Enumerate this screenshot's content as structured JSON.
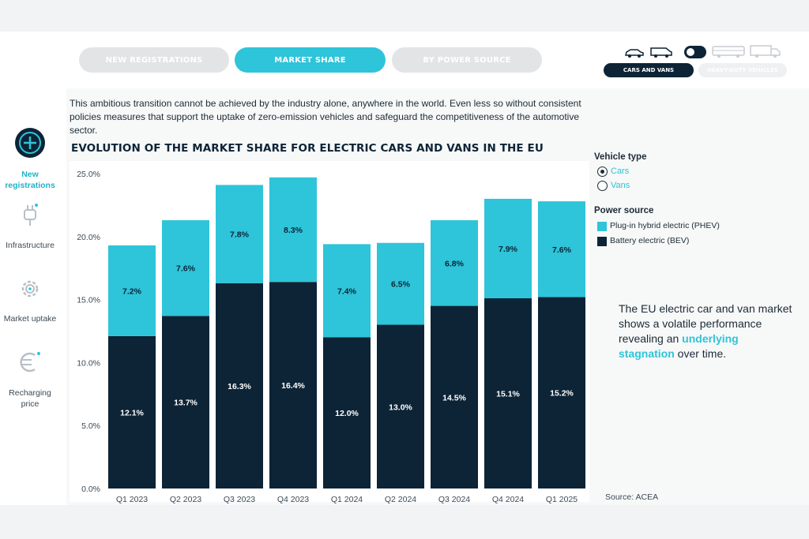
{
  "tabs": [
    {
      "label": "NEW REGISTRATIONS",
      "active": false
    },
    {
      "label": "MARKET SHARE",
      "active": true
    },
    {
      "label": "BY POWER SOURCE",
      "active": false
    }
  ],
  "vehicle_switch": {
    "cars_vans_label": "CARS AND VANS",
    "heavy_duty_label": "HEAVY-DUTY VEHICLES"
  },
  "sidebar": {
    "items": [
      {
        "label": "New registrations",
        "icon": "plus-circle-icon",
        "active": true
      },
      {
        "label": "Infrastructure",
        "icon": "charger-plug-icon",
        "active": false
      },
      {
        "label": "Market uptake",
        "icon": "gear-icon",
        "active": false
      },
      {
        "label": "Recharging price",
        "icon": "euro-icon",
        "active": false
      }
    ]
  },
  "intro_text": "This ambitious transition cannot be achieved by the industry alone, anywhere in the world. Even less so without consistent policies measures that support the uptake of zero-emission vehicles and safeguard the competitiveness of the automotive sector.",
  "legend": {
    "vehicle_type_title": "Vehicle type",
    "vehicle_options": [
      {
        "label": "Cars",
        "selected": true
      },
      {
        "label": "Vans",
        "selected": false
      }
    ],
    "power_source_title": "Power source",
    "power_sources": [
      {
        "label": "Plug-in hybrid electric (PHEV)",
        "color": "#2ec4d9"
      },
      {
        "label": "Battery electric (BEV)",
        "color": "#0d2436"
      }
    ]
  },
  "note": {
    "before": "The EU electric car and van market shows a volatile performance revealing an ",
    "highlight": "underlying stagnation",
    "after": " over time."
  },
  "source": "Source: ACEA",
  "chart_data": {
    "type": "bar",
    "stacked": true,
    "title": "EVOLUTION OF THE MARKET SHARE FOR ELECTRIC CARS AND VANS IN THE EU",
    "categories": [
      "Q1 2023",
      "Q2 2023",
      "Q3 2023",
      "Q4 2023",
      "Q1 2024",
      "Q2 2024",
      "Q3 2024",
      "Q4 2024",
      "Q1 2025"
    ],
    "series": [
      {
        "name": "Battery electric (BEV)",
        "color": "#0d2436",
        "values": [
          12.1,
          13.7,
          16.3,
          16.4,
          12.0,
          13.0,
          14.5,
          15.1,
          15.2
        ],
        "labels": [
          "12.1%",
          "13.7%",
          "16.3%",
          "16.4%",
          "12.0%",
          "13.0%",
          "14.5%",
          "15.1%",
          "15.2%"
        ]
      },
      {
        "name": "Plug-in hybrid electric (PHEV)",
        "color": "#2ec4d9",
        "values": [
          7.2,
          7.6,
          7.8,
          8.3,
          7.4,
          6.5,
          6.8,
          7.9,
          7.6
        ],
        "labels": [
          "7.2%",
          "7.6%",
          "7.8%",
          "8.3%",
          "7.4%",
          "6.5%",
          "6.8%",
          "7.9%",
          "7.6%"
        ]
      }
    ],
    "ylim": [
      0,
      25
    ],
    "yticks": [
      0,
      5,
      10,
      15,
      20,
      25
    ],
    "ytick_labels": [
      "0.0%",
      "5.0%",
      "10.0%",
      "15.0%",
      "20.0%",
      "25.0%"
    ],
    "xlabel": "",
    "ylabel": "",
    "legend_position": "right",
    "grid": false
  }
}
